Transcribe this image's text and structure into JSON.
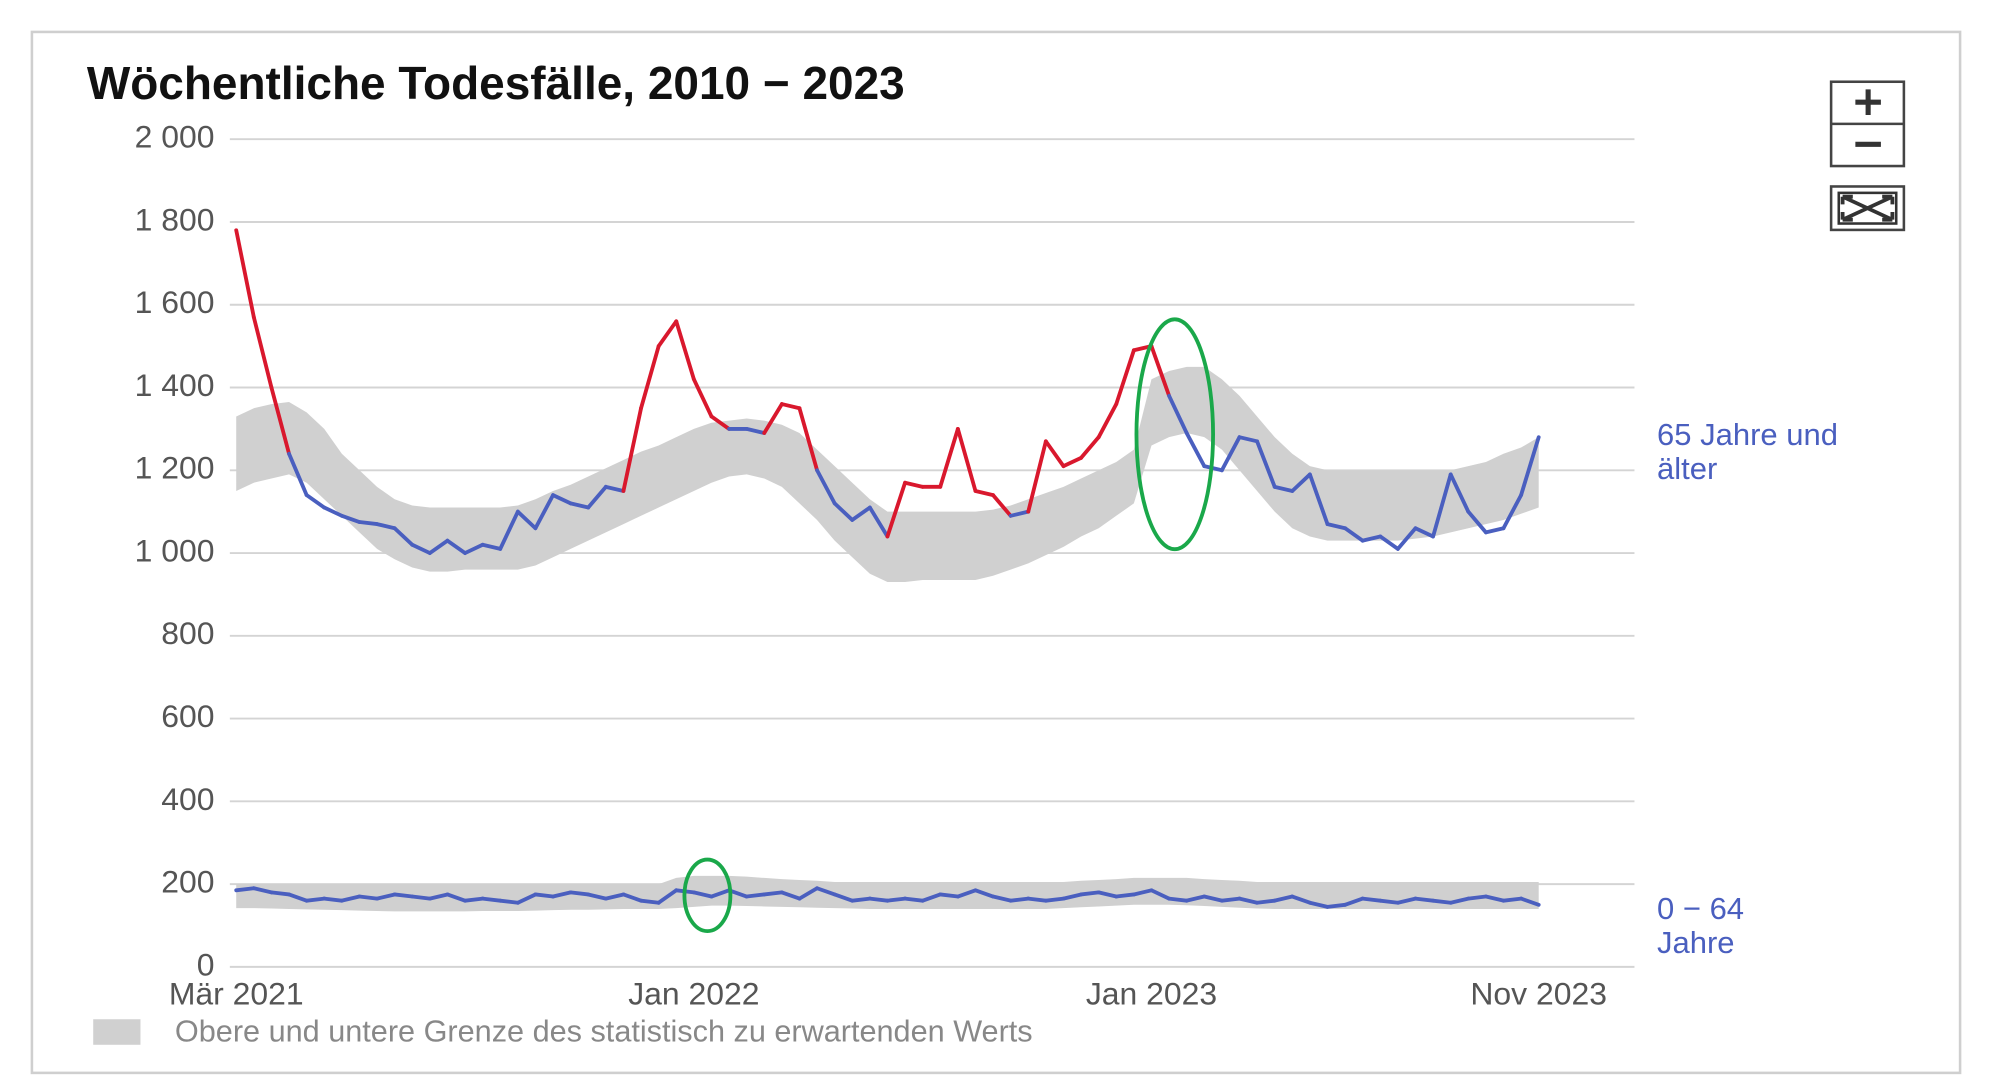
{
  "chart_data": {
    "type": "line",
    "title": "Wöchentliche Todesfälle, 2010 − 2023",
    "categories": [
      "Mär 2021",
      null,
      null,
      null,
      null,
      null,
      null,
      null,
      null,
      null,
      null,
      null,
      null,
      null,
      null,
      null,
      null,
      null,
      null,
      null,
      null,
      null,
      null,
      null,
      null,
      null,
      "Jan 2022",
      null,
      null,
      null,
      null,
      null,
      null,
      null,
      null,
      null,
      null,
      null,
      null,
      null,
      null,
      null,
      null,
      null,
      null,
      null,
      null,
      null,
      null,
      null,
      null,
      null,
      "Jan 2023",
      null,
      null,
      null,
      null,
      null,
      null,
      null,
      null,
      null,
      null,
      null,
      null,
      null,
      null,
      null,
      null,
      null,
      null,
      null,
      null,
      null,
      "Nov 2023"
    ],
    "ylim": [
      0,
      2000
    ],
    "yticks": [
      0,
      200,
      400,
      600,
      800,
      {
        "value": 1000,
        "label": "1 000"
      },
      {
        "value": 1200,
        "label": "1 200"
      },
      {
        "value": 1400,
        "label": "1 400"
      },
      {
        "value": 1600,
        "label": "1 600"
      },
      {
        "value": 1800,
        "label": "1 800"
      },
      {
        "value": 2000,
        "label": "2 000"
      }
    ],
    "grid": true,
    "series": [
      {
        "name": "65 Jahre und älter",
        "color": "#4a5fbf",
        "alert_color": "#d9182d",
        "values": [
          1780,
          1570,
          1400,
          1240,
          1140,
          1110,
          1090,
          1075,
          1070,
          1060,
          1020,
          1000,
          1030,
          1000,
          1020,
          1010,
          1100,
          1060,
          1140,
          1120,
          1110,
          1160,
          1150,
          1350,
          1500,
          1560,
          1420,
          1330,
          1300,
          1300,
          1290,
          1360,
          1350,
          1200,
          1120,
          1080,
          1110,
          1040,
          1170,
          1160,
          1160,
          1300,
          1150,
          1140,
          1090,
          1100,
          1270,
          1210,
          1230,
          1280,
          1360,
          1490,
          1500,
          1380,
          1290,
          1210,
          1200,
          1280,
          1270,
          1160,
          1150,
          1190,
          1070,
          1060,
          1030,
          1040,
          1010,
          1060,
          1040,
          1190,
          1100,
          1050,
          1060,
          1140,
          1280
        ],
        "band_upper": [
          1330,
          1350,
          1360,
          1365,
          1340,
          1300,
          1240,
          1200,
          1160,
          1130,
          1115,
          1110,
          1110,
          1110,
          1110,
          1110,
          1115,
          1130,
          1150,
          1165,
          1185,
          1205,
          1225,
          1245,
          1260,
          1280,
          1300,
          1315,
          1320,
          1325,
          1320,
          1310,
          1290,
          1250,
          1210,
          1170,
          1130,
          1100,
          1100,
          1100,
          1100,
          1100,
          1100,
          1105,
          1115,
          1130,
          1145,
          1160,
          1180,
          1200,
          1220,
          1250,
          1420,
          1440,
          1450,
          1450,
          1420,
          1380,
          1330,
          1280,
          1240,
          1210,
          1200,
          1200,
          1200,
          1200,
          1200,
          1200,
          1200,
          1200,
          1210,
          1220,
          1240,
          1255,
          1280
        ],
        "band_lower": [
          1150,
          1170,
          1180,
          1190,
          1170,
          1130,
          1090,
          1050,
          1010,
          985,
          965,
          955,
          955,
          960,
          960,
          960,
          960,
          970,
          990,
          1010,
          1030,
          1050,
          1070,
          1090,
          1110,
          1130,
          1150,
          1170,
          1185,
          1190,
          1180,
          1160,
          1120,
          1080,
          1030,
          990,
          950,
          930,
          930,
          935,
          935,
          935,
          935,
          945,
          960,
          975,
          995,
          1015,
          1040,
          1060,
          1090,
          1120,
          1260,
          1280,
          1290,
          1280,
          1250,
          1200,
          1150,
          1100,
          1060,
          1040,
          1030,
          1030,
          1030,
          1030,
          1030,
          1035,
          1040,
          1050,
          1060,
          1070,
          1080,
          1095,
          1110
        ]
      },
      {
        "name": "0 − 64 Jahre",
        "color": "#4a5fbf",
        "alert_color": "#d9182d",
        "values": [
          185,
          190,
          180,
          175,
          160,
          165,
          160,
          170,
          165,
          175,
          170,
          165,
          175,
          160,
          165,
          160,
          155,
          175,
          170,
          180,
          175,
          165,
          175,
          160,
          155,
          185,
          180,
          170,
          185,
          170,
          175,
          180,
          165,
          190,
          175,
          160,
          165,
          160,
          165,
          160,
          175,
          170,
          185,
          170,
          160,
          165,
          160,
          165,
          175,
          180,
          170,
          175,
          185,
          165,
          160,
          170,
          160,
          165,
          155,
          160,
          170,
          155,
          145,
          150,
          165,
          160,
          155,
          165,
          160,
          155,
          165,
          170,
          160,
          165,
          150
        ],
        "band_upper": [
          200,
          200,
          200,
          200,
          200,
          200,
          200,
          200,
          200,
          200,
          200,
          200,
          200,
          200,
          200,
          200,
          200,
          200,
          200,
          200,
          200,
          200,
          200,
          200,
          200,
          215,
          220,
          220,
          220,
          218,
          215,
          212,
          210,
          208,
          205,
          205,
          205,
          205,
          205,
          205,
          205,
          205,
          205,
          205,
          205,
          205,
          205,
          205,
          208,
          210,
          212,
          215,
          215,
          215,
          215,
          212,
          210,
          208,
          205,
          205,
          205,
          205,
          205,
          205,
          205,
          205,
          205,
          205,
          205,
          205,
          205,
          205,
          205,
          205,
          205
        ],
        "band_lower": [
          142,
          142,
          141,
          140,
          139,
          138,
          137,
          136,
          135,
          134,
          134,
          134,
          134,
          134,
          135,
          135,
          135,
          136,
          137,
          138,
          138,
          139,
          140,
          140,
          140,
          142,
          145,
          148,
          148,
          147,
          146,
          145,
          144,
          143,
          142,
          141,
          140,
          140,
          140,
          140,
          140,
          140,
          140,
          140,
          140,
          140,
          140,
          142,
          144,
          146,
          148,
          150,
          150,
          150,
          149,
          147,
          145,
          143,
          141,
          140,
          140,
          140,
          140,
          140,
          140,
          140,
          140,
          140,
          140,
          140,
          140,
          140,
          140,
          140,
          140
        ]
      }
    ],
    "band_color": "#d0d0d0",
    "band_legend": "Obere und untere Grenze des statistisch zu erwartenden Werts"
  }
}
